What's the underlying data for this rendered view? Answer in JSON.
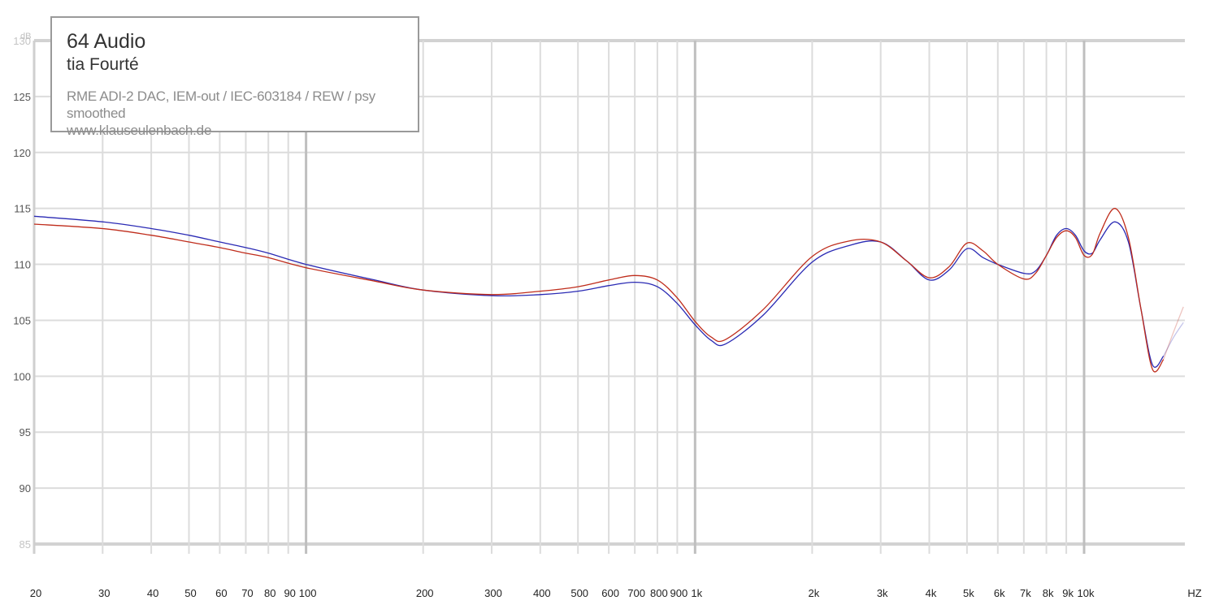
{
  "chart_data": {
    "type": "line",
    "title": "64 Audio",
    "subtitle": "tia Fourté",
    "caption": "RME ADI-2 DAC, IEM-out / IEC-603184 / REW / psy smoothed",
    "source": "www.klauseulenbach.de",
    "ylabel": "dB",
    "xlabel": "HZ",
    "x_scale": "log",
    "xlim": [
      20,
      25000
    ],
    "ylim": [
      85,
      130
    ],
    "y_ticks": [
      "85",
      "90",
      "95",
      "100",
      "105",
      "110",
      "115",
      "120",
      "125",
      "130"
    ],
    "x_ticks": [
      {
        "v": 20,
        "label": "20"
      },
      {
        "v": 30,
        "label": "30"
      },
      {
        "v": 40,
        "label": "40"
      },
      {
        "v": 50,
        "label": "50"
      },
      {
        "v": 60,
        "label": "60"
      },
      {
        "v": 70,
        "label": "70"
      },
      {
        "v": 80,
        "label": "80"
      },
      {
        "v": 90,
        "label": "90"
      },
      {
        "v": 100,
        "label": "100"
      },
      {
        "v": 200,
        "label": "200"
      },
      {
        "v": 300,
        "label": "300"
      },
      {
        "v": 400,
        "label": "400"
      },
      {
        "v": 500,
        "label": "500"
      },
      {
        "v": 600,
        "label": "600"
      },
      {
        "v": 700,
        "label": "700"
      },
      {
        "v": 800,
        "label": "800"
      },
      {
        "v": 900,
        "label": "900"
      },
      {
        "v": 1000,
        "label": "1k"
      },
      {
        "v": 2000,
        "label": "2k"
      },
      {
        "v": 3000,
        "label": "3k"
      },
      {
        "v": 4000,
        "label": "4k"
      },
      {
        "v": 5000,
        "label": "5k"
      },
      {
        "v": 6000,
        "label": "6k"
      },
      {
        "v": 7000,
        "label": "7k"
      },
      {
        "v": 8000,
        "label": "8k"
      },
      {
        "v": 9000,
        "label": "9k"
      },
      {
        "v": 10000,
        "label": "10k"
      }
    ],
    "grid": true,
    "legend_placement": "top-left",
    "series": [
      {
        "color": "#2a2ab4",
        "x": [
          20,
          30,
          40,
          50,
          60,
          70,
          80,
          100,
          150,
          200,
          300,
          400,
          500,
          600,
          700,
          800,
          900,
          1000,
          1100,
          1200,
          1500,
          2000,
          2500,
          3000,
          3500,
          4000,
          4500,
          5000,
          5500,
          6000,
          7000,
          7500,
          8000,
          8500,
          9000,
          9500,
          10000,
          10500,
          11000,
          12000,
          13000,
          14000,
          15000,
          16000,
          17000,
          18000
        ],
        "y": [
          114.3,
          113.8,
          113.2,
          112.6,
          112.0,
          111.5,
          111.0,
          110.0,
          108.6,
          107.7,
          107.2,
          107.3,
          107.6,
          108.1,
          108.4,
          108.0,
          106.5,
          104.6,
          103.2,
          102.9,
          105.5,
          110.2,
          111.7,
          112.0,
          110.3,
          108.6,
          109.5,
          111.4,
          110.6,
          110.0,
          109.2,
          109.4,
          110.8,
          112.6,
          113.2,
          112.6,
          111.2,
          111.0,
          112.2,
          113.8,
          112.0,
          106.0,
          101.0,
          101.8,
          103.5,
          104.8
        ]
      },
      {
        "color": "#bf2c1b",
        "x": [
          20,
          30,
          40,
          50,
          60,
          70,
          80,
          100,
          150,
          200,
          300,
          400,
          500,
          600,
          700,
          800,
          900,
          1000,
          1100,
          1200,
          1500,
          2000,
          2500,
          3000,
          3500,
          4000,
          4500,
          5000,
          5500,
          6000,
          7000,
          7500,
          8000,
          8500,
          9000,
          9500,
          10000,
          10500,
          11000,
          12000,
          13000,
          14000,
          15000,
          16000,
          17000,
          18000
        ],
        "y": [
          113.6,
          113.2,
          112.6,
          112.0,
          111.5,
          111.0,
          110.6,
          109.7,
          108.5,
          107.7,
          107.3,
          107.6,
          108.0,
          108.6,
          109.0,
          108.6,
          107.0,
          104.9,
          103.5,
          103.3,
          106.0,
          110.7,
          112.1,
          112.0,
          110.3,
          108.8,
          109.8,
          111.9,
          111.2,
          110.0,
          108.7,
          109.2,
          110.8,
          112.4,
          113.0,
          112.4,
          110.8,
          110.9,
          112.8,
          115.0,
          112.4,
          106.0,
          100.6,
          101.5,
          104.0,
          106.2
        ]
      }
    ]
  }
}
